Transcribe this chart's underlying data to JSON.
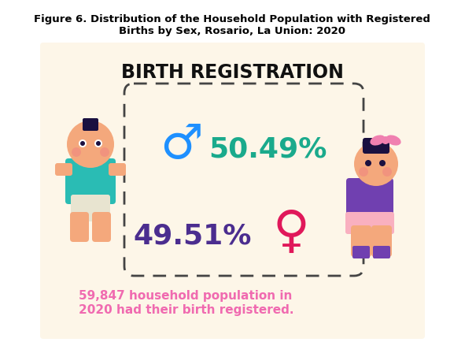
{
  "title_line1": "Figure 6. Distribution of the Household Population with Registered",
  "title_line2": "Births by Sex, Rosario, La Union: 2020",
  "card_title": "BIRTH REGISTRATION",
  "male_pct": "50.49%",
  "female_pct": "49.51%",
  "footnote_line1": "59,847 household population in",
  "footnote_line2": "2020 had their birth registered.",
  "white_bg": "#ffffff",
  "card_bg": "#fdf6e8",
  "title_color": "#000000",
  "card_title_color": "#111111",
  "male_pct_color": "#1aaa8c",
  "female_pct_color": "#4b2d8f",
  "male_symbol_color": "#1e90ff",
  "female_symbol_color": "#e0185a",
  "footnote_color": "#f06ab0",
  "dashed_box_color": "#444444",
  "skin_color": "#f4a87c",
  "teal_color": "#2abcb4",
  "diaper_color": "#e8e8e8",
  "hair_color": "#1a1040",
  "pink_color": "#f080b0",
  "purple_color": "#7040b0",
  "eye_color": "#1a1040"
}
